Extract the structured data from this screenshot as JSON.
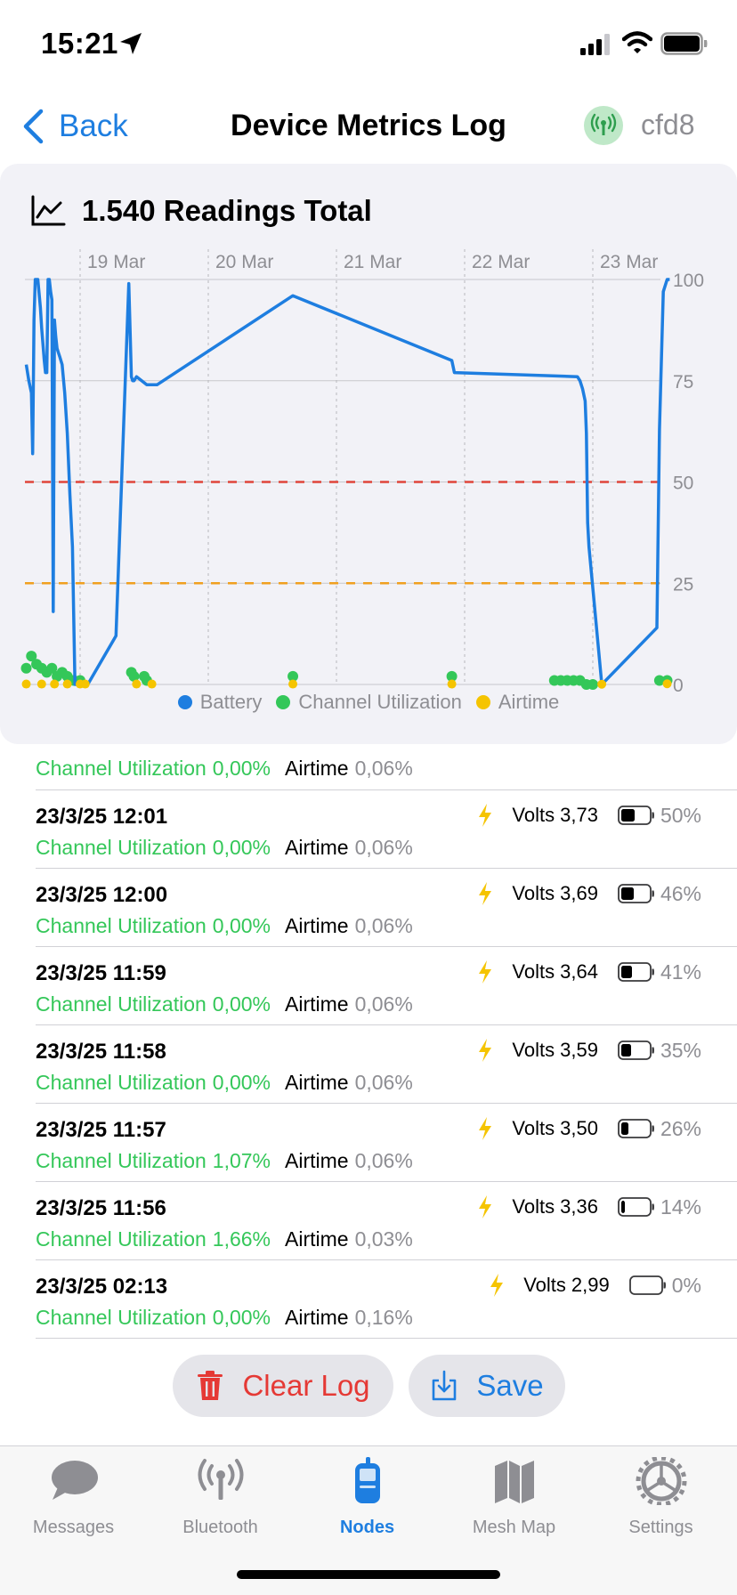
{
  "status_bar": {
    "time": "15:21"
  },
  "nav": {
    "back_label": "Back",
    "title": "Device Metrics Log",
    "node_id": "cfd8"
  },
  "chart_header": {
    "title": "1.540 Readings Total"
  },
  "chart_data": {
    "type": "line",
    "x_ticks": [
      "19 Mar",
      "20 Mar",
      "21 Mar",
      "22 Mar",
      "23 Mar"
    ],
    "y_ticks": [
      100,
      75,
      50,
      25,
      0
    ],
    "ylim": [
      0,
      100
    ],
    "grid": true,
    "legend_placement": "bottom",
    "thresholds": [
      {
        "value": 50,
        "color": "#e0453a",
        "style": "dashed"
      },
      {
        "value": 25,
        "color": "#f0a020",
        "style": "dashed"
      }
    ],
    "series": [
      {
        "name": "Battery",
        "color": "#1e7ee0",
        "x": [
          -0.42,
          -0.4,
          -0.38,
          -0.37,
          -0.36,
          -0.35,
          -0.33,
          -0.31,
          -0.3,
          -0.28,
          -0.27,
          -0.26,
          -0.25,
          -0.24,
          -0.23,
          -0.22,
          -0.21,
          -0.2,
          -0.19,
          -0.18,
          -0.17,
          -0.16,
          -0.14,
          -0.12,
          -0.1,
          -0.08,
          -0.06,
          -0.04,
          -0.03,
          -0.02,
          0.0,
          0.02,
          0.04,
          0.06,
          0.28,
          0.38,
          0.4,
          0.41,
          0.42,
          0.44,
          0.52,
          0.6,
          1.66,
          2.9,
          2.92,
          3.88,
          3.9,
          3.92,
          3.94,
          3.95,
          3.96,
          3.97,
          4.07,
          4.5,
          4.52,
          4.55,
          4.58,
          4.6
        ],
        "values": [
          79,
          75,
          72,
          57,
          90,
          100,
          100,
          93,
          88,
          80,
          77,
          77,
          100,
          100,
          97,
          95,
          18,
          90,
          86,
          83,
          82,
          81,
          79,
          72,
          62,
          47,
          34,
          0,
          0,
          0,
          0,
          0,
          0,
          0,
          12,
          99,
          76,
          75,
          75,
          76,
          74,
          74,
          96,
          80,
          77,
          76,
          75,
          73,
          70,
          62,
          40,
          34,
          0,
          14,
          63,
          97,
          100,
          100
        ]
      },
      {
        "name": "Channel Utilization",
        "color": "#34c759",
        "x": [
          -0.42,
          -0.38,
          -0.34,
          -0.3,
          -0.26,
          -0.22,
          -0.18,
          -0.14,
          -0.1,
          -0.05,
          0.0,
          0.4,
          0.42,
          0.5,
          0.52,
          1.66,
          2.9,
          3.7,
          3.75,
          3.8,
          3.85,
          3.9,
          3.95,
          4.0,
          4.52,
          4.58
        ],
        "values": [
          4,
          7,
          5,
          4,
          3,
          4,
          2,
          3,
          2,
          1,
          1,
          3,
          2,
          2,
          1,
          2,
          2,
          1,
          1,
          1,
          1,
          1,
          0,
          0,
          1,
          1
        ]
      },
      {
        "name": "Airtime",
        "color": "#f5c400",
        "x": [
          -0.42,
          -0.3,
          -0.2,
          -0.1,
          0.0,
          0.04,
          0.44,
          0.56,
          1.66,
          2.9,
          4.07,
          4.58
        ],
        "values": [
          0.1,
          0.1,
          0.1,
          0.1,
          0.1,
          0.1,
          0.1,
          0.1,
          0.1,
          0.1,
          0.06,
          0.16
        ]
      }
    ]
  },
  "log": {
    "partial": {
      "cu_label": "Channel Utilization",
      "cu_value": "0,00%",
      "air_label": "Airtime",
      "air_value": "0,06%"
    },
    "rows": [
      {
        "time": "23/3/25 12:01",
        "volts_label": "Volts",
        "volts_value": "3,73",
        "battery_pct": "50%",
        "battery_level": 0.5,
        "cu_label": "Channel Utilization",
        "cu_value": "0,00%",
        "air_label": "Airtime",
        "air_value": "0,06%"
      },
      {
        "time": "23/3/25 12:00",
        "volts_label": "Volts",
        "volts_value": "3,69",
        "battery_pct": "46%",
        "battery_level": 0.46,
        "cu_label": "Channel Utilization",
        "cu_value": "0,00%",
        "air_label": "Airtime",
        "air_value": "0,06%"
      },
      {
        "time": "23/3/25 11:59",
        "volts_label": "Volts",
        "volts_value": "3,64",
        "battery_pct": "41%",
        "battery_level": 0.41,
        "cu_label": "Channel Utilization",
        "cu_value": "0,00%",
        "air_label": "Airtime",
        "air_value": "0,06%"
      },
      {
        "time": "23/3/25 11:58",
        "volts_label": "Volts",
        "volts_value": "3,59",
        "battery_pct": "35%",
        "battery_level": 0.35,
        "cu_label": "Channel Utilization",
        "cu_value": "0,00%",
        "air_label": "Airtime",
        "air_value": "0,06%"
      },
      {
        "time": "23/3/25 11:57",
        "volts_label": "Volts",
        "volts_value": "3,50",
        "battery_pct": "26%",
        "battery_level": 0.26,
        "cu_label": "Channel Utilization",
        "cu_value": "1,07%",
        "air_label": "Airtime",
        "air_value": "0,06%"
      },
      {
        "time": "23/3/25 11:56",
        "volts_label": "Volts",
        "volts_value": "3,36",
        "battery_pct": "14%",
        "battery_level": 0.14,
        "cu_label": "Channel Utilization",
        "cu_value": "1,66%",
        "air_label": "Airtime",
        "air_value": "0,03%"
      },
      {
        "time": "23/3/25 02:13",
        "volts_label": "Volts",
        "volts_value": "2,99",
        "battery_pct": "0%",
        "battery_level": 0,
        "cu_label": "Channel Utilization",
        "cu_value": "0,00%",
        "air_label": "Airtime",
        "air_value": "0,16%"
      }
    ]
  },
  "actions": {
    "clear_label": "Clear Log",
    "save_label": "Save"
  },
  "tab_bar": {
    "tabs": [
      {
        "label": "Messages",
        "icon": "chat-bubble-icon",
        "active": false
      },
      {
        "label": "Bluetooth",
        "icon": "antenna-icon",
        "active": false
      },
      {
        "label": "Nodes",
        "icon": "radio-device-icon",
        "active": true
      },
      {
        "label": "Mesh Map",
        "icon": "map-icon",
        "active": false
      },
      {
        "label": "Settings",
        "icon": "gear-icon",
        "active": false
      }
    ]
  },
  "colors": {
    "accent": "#1e7ee0",
    "channel_utilization": "#34c759",
    "airtime": "#f5c400",
    "danger": "#e53935",
    "bolt": "#f5c400",
    "card_background": "#f2f2f7"
  }
}
